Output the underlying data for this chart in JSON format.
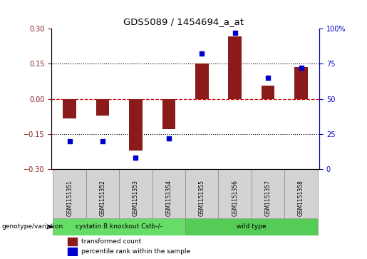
{
  "title": "GDS5089 / 1454694_a_at",
  "samples": [
    "GSM1151351",
    "GSM1151352",
    "GSM1151353",
    "GSM1151354",
    "GSM1151355",
    "GSM1151356",
    "GSM1151357",
    "GSM1151358"
  ],
  "bar_values": [
    -0.085,
    -0.07,
    -0.22,
    -0.13,
    0.15,
    0.265,
    0.055,
    0.135
  ],
  "scatter_values": [
    20,
    20,
    8,
    22,
    82,
    97,
    65,
    72
  ],
  "ylim_left": [
    -0.3,
    0.3
  ],
  "ylim_right": [
    0,
    100
  ],
  "yticks_left": [
    -0.3,
    -0.15,
    0,
    0.15,
    0.3
  ],
  "yticks_right": [
    0,
    25,
    50,
    75,
    100
  ],
  "bar_color": "#8B1A1A",
  "scatter_color": "#0000CC",
  "hline_color": "#CC0000",
  "dotted_color": "#000000",
  "bg_color": "#FFFFFF",
  "plot_bg": "#FFFFFF",
  "groups": [
    {
      "label": "cystatin B knockout Cstb-/-",
      "samples": [
        0,
        1,
        2,
        3
      ],
      "color": "#66DD66"
    },
    {
      "label": "wild type",
      "samples": [
        4,
        5,
        6,
        7
      ],
      "color": "#55CC55"
    }
  ],
  "genotype_label": "genotype/variation",
  "legend_bar_label": "transformed count",
  "legend_scatter_label": "percentile rank within the sample",
  "n_knockout": 4,
  "n_samples": 8
}
